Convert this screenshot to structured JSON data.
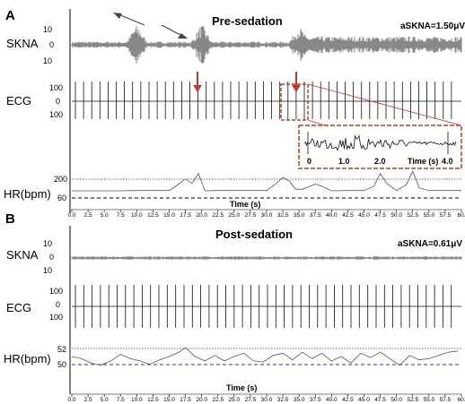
{
  "chart_data": [
    {
      "type": "line",
      "panel": "A",
      "title": "Pre-sedation",
      "annotation": "aSKNA=1.50μV",
      "xlabel": "Time (s)",
      "x_ticks": [
        "0.0",
        "2.5",
        "5.0",
        "7.5",
        "10.0",
        "12.5",
        "15.0",
        "17.5",
        "20.0",
        "22.5",
        "25.0",
        "27.5",
        "30.0",
        "32.5",
        "35.0",
        "37.5",
        "40.0",
        "42.5",
        "45.0",
        "47.5",
        "50.0",
        "52.5",
        "55.0",
        "57.5",
        "60."
      ],
      "xlim": [
        0,
        60
      ],
      "skna": {
        "label": "SKNA",
        "ticks": [
          "10",
          "0",
          "10"
        ],
        "ylim": [
          -10,
          10
        ],
        "bursts_s": [
          {
            "t": 10,
            "amp": 1.0
          },
          {
            "t": 20,
            "amp": 1.0
          },
          {
            "t": 35.0,
            "amp": 0.9
          }
        ],
        "baseline_shift_s": 35
      },
      "ecg": {
        "label": "ECG",
        "ticks": [
          "100",
          "0",
          "100"
        ],
        "ylim": [
          -100,
          100
        ]
      },
      "inset": {
        "ticks": [
          "0",
          "1.0",
          "2.0",
          "4.0"
        ],
        "xlabel": "Time (s)"
      },
      "hr": {
        "label": "HR(bpm)",
        "ticks": [
          "200",
          "60"
        ],
        "ylim": [
          0,
          240
        ],
        "x": [
          0,
          2.5,
          5,
          7.5,
          10,
          12.5,
          15,
          16,
          17.5,
          18.5,
          19.5,
          20.5,
          22.5,
          25,
          27.5,
          30,
          31.5,
          32.5,
          33.5,
          34.5,
          35.5,
          37.5,
          38.5,
          40,
          42.5,
          45,
          46.5,
          47.5,
          48.5,
          50,
          51.5,
          52.5,
          53.5,
          55,
          57.5,
          60
        ],
        "y": [
          60,
          60,
          60,
          60,
          62,
          62,
          62,
          90,
          140,
          110,
          175,
          60,
          62,
          62,
          62,
          62,
          110,
          150,
          125,
          70,
          70,
          105,
          90,
          60,
          62,
          62,
          90,
          175,
          110,
          62,
          100,
          190,
          80,
          62,
          62,
          62
        ]
      }
    },
    {
      "type": "line",
      "panel": "B",
      "title": "Post-sedation",
      "annotation": "aSKNA=0.61μV",
      "xlabel": "Time (s)",
      "x_ticks": [
        "0.0",
        "2.5",
        "5.0",
        "7.5",
        "10.0",
        "12.5",
        "15.0",
        "17.5",
        "20.0",
        "22.5",
        "25.0",
        "27.5",
        "30.0",
        "32.5",
        "35.0",
        "37.5",
        "40.0",
        "42.5",
        "45.0",
        "47.5",
        "50.0",
        "52.5",
        "55.0",
        "57.5",
        "60."
      ],
      "xlim": [
        0,
        60
      ],
      "skna": {
        "label": "SKNA",
        "ticks": [
          "10",
          "0",
          "10"
        ],
        "ylim": [
          -10,
          10
        ]
      },
      "ecg": {
        "label": "ECG",
        "ticks": [
          "100",
          "0",
          "100"
        ],
        "ylim": [
          -100,
          100
        ]
      },
      "hr": {
        "label": "HR(bpm)",
        "ticks": [
          "52",
          "50"
        ],
        "ylim": [
          49.2,
          52.8
        ],
        "x": [
          0,
          1.5,
          3,
          4.5,
          6,
          7.5,
          9,
          10.5,
          12,
          13.5,
          15,
          16.5,
          17.5,
          19,
          20.5,
          22,
          23.5,
          25,
          26.5,
          28,
          29.5,
          31,
          32.5,
          34,
          35.5,
          37,
          38.5,
          40,
          41.5,
          43,
          44.5,
          46,
          47.5,
          49,
          50.5,
          52,
          53.5,
          55,
          56.5,
          58,
          59.5
        ],
        "y": [
          51.0,
          50.8,
          50.4,
          50.2,
          50.6,
          51.2,
          50.8,
          50.6,
          50.3,
          50.7,
          51.0,
          51.4,
          51.8,
          51.0,
          50.6,
          51.1,
          50.6,
          51.0,
          51.3,
          50.6,
          50.5,
          51.1,
          51.3,
          50.7,
          51.4,
          50.8,
          51.3,
          50.6,
          51.0,
          50.4,
          51.3,
          50.9,
          51.4,
          50.8,
          50.2,
          51.1,
          50.7,
          50.8,
          51.1,
          51.4,
          51.5
        ]
      }
    }
  ],
  "colors": {
    "trace": "#111111",
    "red": "#c0392b",
    "refline": "#27379a",
    "hrline": "#555555",
    "arrow": "#444444"
  }
}
